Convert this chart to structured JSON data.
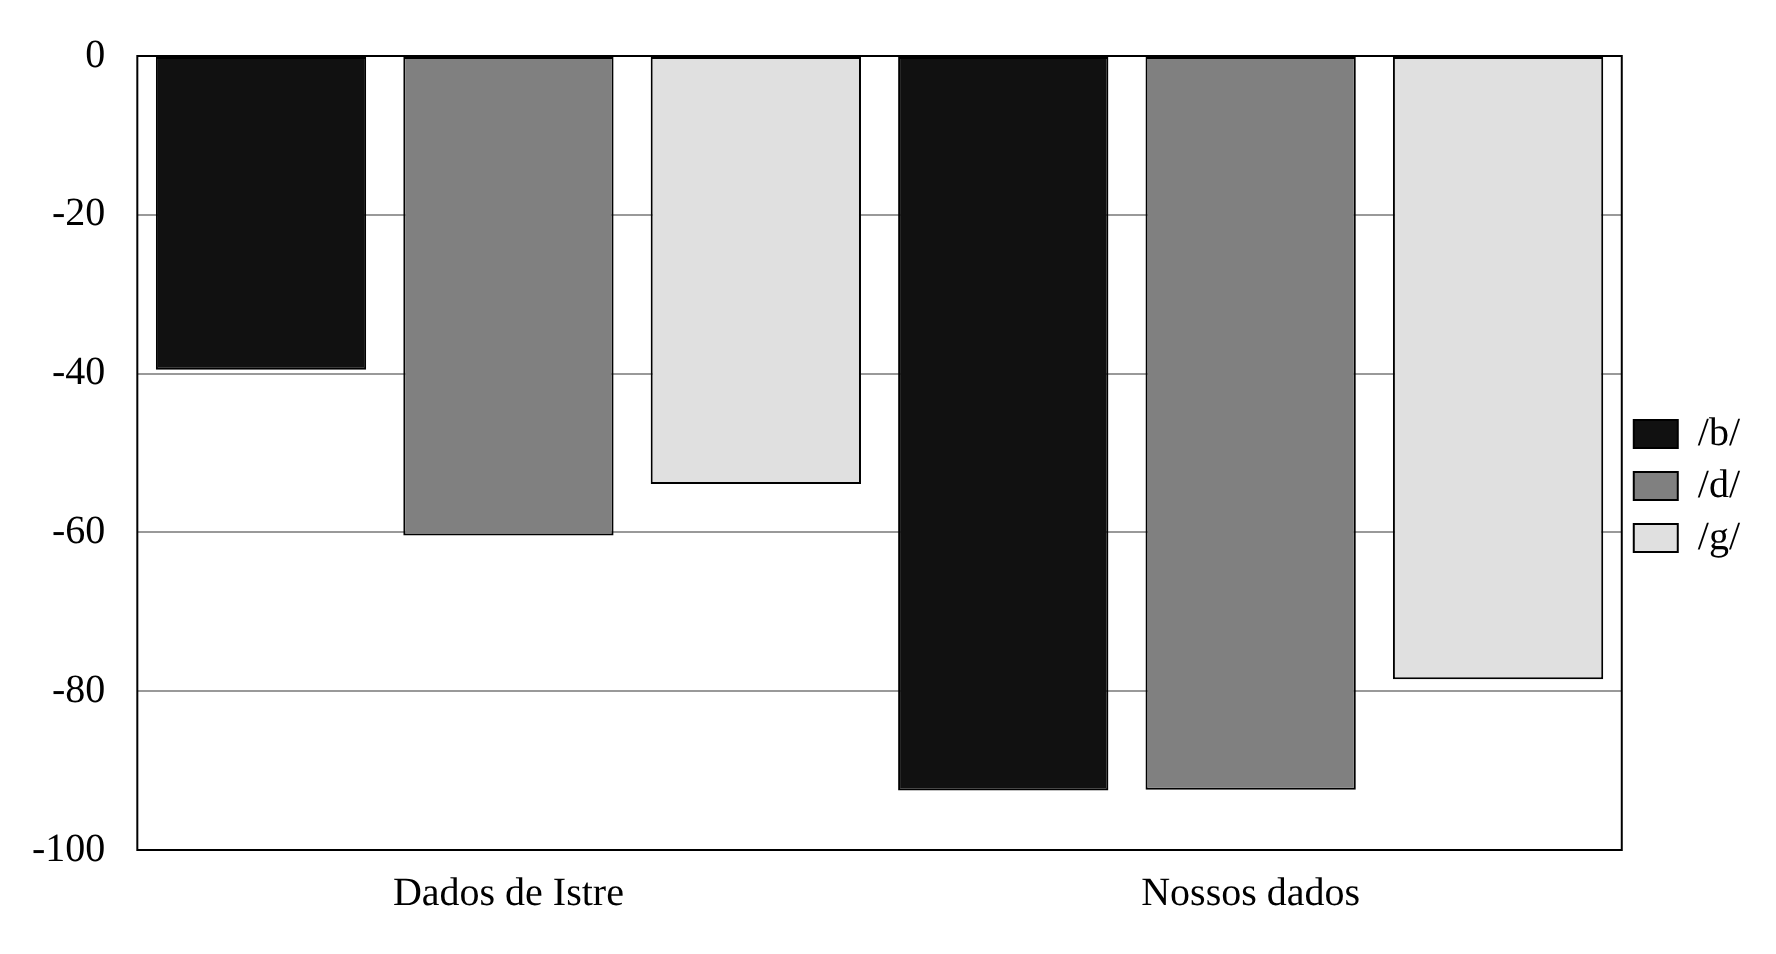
{
  "chart_data": {
    "type": "bar",
    "categories": [
      "Dados de Istre",
      "Nossos dados"
    ],
    "series": [
      {
        "name": "/b/",
        "color": "#111111",
        "values": [
          -39.5,
          -92.5
        ]
      },
      {
        "name": "/d/",
        "color": "#808080",
        "values": [
          -60.4,
          -92.4
        ]
      },
      {
        "name": "/g/",
        "color": "#e0e0e0",
        "values": [
          -53.9,
          -78.5
        ]
      }
    ],
    "ylim": [
      -100,
      0
    ],
    "yticks": [
      -100,
      -80,
      -60,
      -40,
      -20,
      0
    ],
    "grid": "y",
    "legend": "right"
  }
}
